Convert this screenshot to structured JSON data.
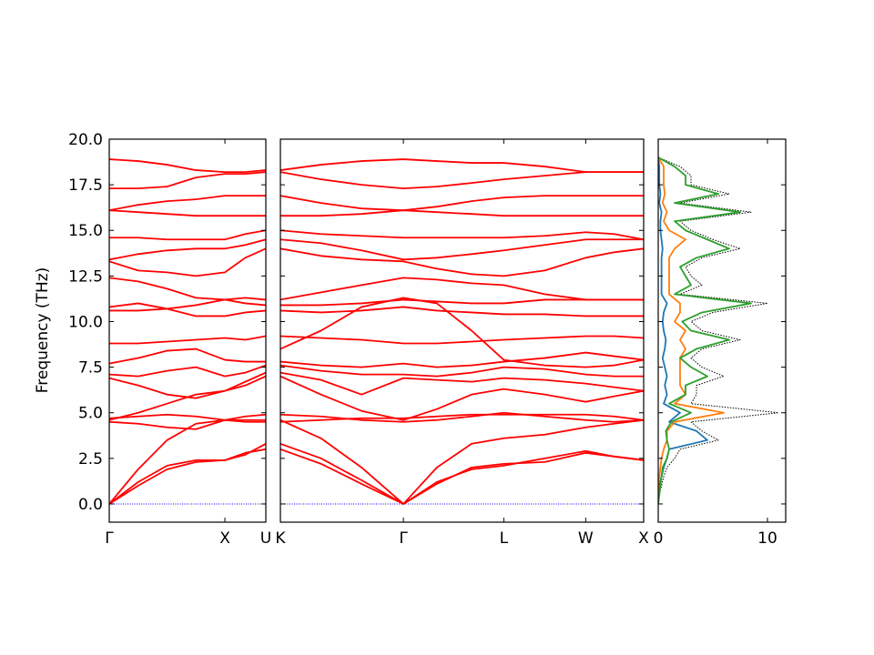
{
  "chart_data": {
    "type": "line",
    "ylabel": "Frequency (THz)",
    "ylim": [
      -1,
      20
    ],
    "yticks": [
      {
        "value": 0,
        "label": "0.0"
      },
      2.5,
      {
        "value": 5,
        "label": "5.0"
      },
      7.5,
      {
        "value": 10,
        "label": "10.0"
      },
      12.5,
      {
        "value": 15,
        "label": "15.0"
      },
      17.5,
      {
        "value": 20,
        "label": "20.0"
      }
    ],
    "hline": 0,
    "hline_color": "#0000ff",
    "panels": [
      {
        "type": "line",
        "color": "#ff0000",
        "xlim": [
          0,
          1.354
        ],
        "xticks": [
          {
            "value": 0,
            "label": "Γ"
          },
          {
            "value": 1.0,
            "label": "X"
          },
          {
            "value": 1.354,
            "label": "U"
          }
        ],
        "x": [
          0,
          0.25,
          0.5,
          0.75,
          1.0,
          1.177,
          1.354
        ],
        "series": [
          {
            "values": [
              0,
              1.0,
              1.9,
              2.3,
              2.4,
              2.7,
              3.3
            ]
          },
          {
            "values": [
              0,
              1.2,
              2.1,
              2.4,
              2.4,
              2.8,
              3.0
            ]
          },
          {
            "values": [
              0,
              1.9,
              3.5,
              4.4,
              4.6,
              4.6,
              4.6
            ]
          },
          {
            "values": [
              4.5,
              4.4,
              4.2,
              4.1,
              4.6,
              4.8,
              4.9
            ]
          },
          {
            "values": [
              4.6,
              5.0,
              5.5,
              6.0,
              6.2,
              6.5,
              7.0
            ]
          },
          {
            "values": [
              4.7,
              4.8,
              4.9,
              4.8,
              4.6,
              4.5,
              4.5
            ]
          },
          {
            "values": [
              6.9,
              6.5,
              6.0,
              5.8,
              6.2,
              6.7,
              7.2
            ]
          },
          {
            "values": [
              7.1,
              7.0,
              7.3,
              7.5,
              7.0,
              7.2,
              7.6
            ]
          },
          {
            "values": [
              7.7,
              8.0,
              8.4,
              8.5,
              7.9,
              7.8,
              7.8
            ]
          },
          {
            "values": [
              8.8,
              8.8,
              8.9,
              9.0,
              9.1,
              9.0,
              9.2
            ]
          },
          {
            "values": [
              10.6,
              10.6,
              10.7,
              10.9,
              11.2,
              11.0,
              10.9
            ]
          },
          {
            "values": [
              10.8,
              11.0,
              10.7,
              10.3,
              10.3,
              10.5,
              10.6
            ]
          },
          {
            "values": [
              12.4,
              12.2,
              11.8,
              11.3,
              11.2,
              11.3,
              11.2
            ]
          },
          {
            "values": [
              13.3,
              12.8,
              12.7,
              12.5,
              12.7,
              13.5,
              14.0
            ]
          },
          {
            "values": [
              13.4,
              13.7,
              13.9,
              14.0,
              14.0,
              14.2,
              14.5
            ]
          },
          {
            "values": [
              14.6,
              14.6,
              14.5,
              14.5,
              14.5,
              14.8,
              15.0
            ]
          },
          {
            "values": [
              16.1,
              16.4,
              16.6,
              16.7,
              16.9,
              16.9,
              16.9
            ]
          },
          {
            "values": [
              17.3,
              17.3,
              17.4,
              17.9,
              18.1,
              18.1,
              18.2
            ]
          },
          {
            "values": [
              18.9,
              18.8,
              18.6,
              18.3,
              18.2,
              18.2,
              18.3
            ]
          },
          {
            "values": [
              16.1,
              16.0,
              15.9,
              15.8,
              15.8,
              15.8,
              15.8
            ]
          }
        ]
      },
      {
        "type": "line",
        "color": "#ff0000",
        "xlim": [
          0,
          3.134
        ],
        "xticks": [
          {
            "value": 0,
            "label": "K"
          },
          {
            "value": 1.061,
            "label": "Γ"
          },
          {
            "value": 1.927,
            "label": "L"
          },
          {
            "value": 2.634,
            "label": "W"
          },
          {
            "value": 3.134,
            "label": "X"
          }
        ],
        "x": [
          0,
          0.35,
          0.7,
          1.061,
          1.35,
          1.65,
          1.927,
          2.28,
          2.634,
          2.88,
          3.134
        ],
        "series": [
          {
            "values": [
              3.3,
              2.5,
              1.3,
              0,
              1.2,
              1.9,
              2.1,
              2.5,
              2.9,
              2.6,
              2.4
            ]
          },
          {
            "values": [
              3.0,
              2.2,
              1.1,
              0,
              1.1,
              2.0,
              2.2,
              2.3,
              2.8,
              2.6,
              2.4
            ]
          },
          {
            "values": [
              4.6,
              3.6,
              2.0,
              0,
              2.0,
              3.3,
              3.6,
              3.8,
              4.2,
              4.4,
              4.6
            ]
          },
          {
            "values": [
              4.9,
              4.8,
              4.6,
              4.5,
              4.6,
              4.8,
              5.0,
              4.8,
              4.6,
              4.5,
              4.6
            ]
          },
          {
            "values": [
              7.0,
              6.0,
              5.1,
              4.6,
              5.2,
              6.0,
              6.3,
              6.0,
              5.6,
              5.9,
              6.2
            ]
          },
          {
            "values": [
              4.5,
              4.6,
              4.7,
              4.7,
              4.8,
              4.9,
              4.9,
              4.9,
              4.9,
              4.8,
              4.6
            ]
          },
          {
            "values": [
              7.2,
              6.8,
              6.0,
              6.9,
              6.8,
              6.7,
              6.9,
              6.8,
              6.6,
              6.4,
              6.2
            ]
          },
          {
            "values": [
              7.6,
              7.3,
              7.1,
              7.1,
              7.0,
              7.2,
              7.5,
              7.4,
              7.1,
              7.0,
              7.0
            ]
          },
          {
            "values": [
              7.8,
              7.6,
              7.5,
              7.7,
              7.5,
              7.6,
              7.8,
              8.0,
              8.3,
              8.1,
              7.9
            ]
          },
          {
            "values": [
              9.2,
              9.1,
              9.0,
              8.8,
              8.8,
              8.9,
              9.0,
              9.1,
              9.2,
              9.2,
              9.1
            ]
          },
          {
            "values": [
              10.9,
              10.9,
              11.0,
              11.2,
              11.1,
              11.0,
              11.0,
              11.2,
              11.2,
              11.2,
              11.2
            ]
          },
          {
            "values": [
              10.6,
              10.5,
              10.6,
              10.8,
              10.6,
              10.5,
              10.4,
              10.4,
              10.3,
              10.3,
              10.3
            ]
          },
          {
            "values": [
              11.2,
              11.6,
              12.0,
              12.4,
              12.3,
              12.1,
              12.0,
              11.5,
              11.2,
              11.2,
              11.2
            ]
          },
          {
            "values": [
              14.0,
              13.6,
              13.4,
              13.3,
              12.9,
              12.6,
              12.5,
              12.8,
              13.5,
              13.8,
              14.0
            ]
          },
          {
            "values": [
              14.5,
              14.3,
              13.9,
              13.4,
              13.5,
              13.7,
              13.9,
              14.2,
              14.5,
              14.5,
              14.5
            ]
          },
          {
            "values": [
              15.0,
              14.8,
              14.7,
              14.6,
              14.6,
              14.6,
              14.6,
              14.7,
              14.9,
              14.8,
              14.5
            ]
          },
          {
            "values": [
              16.9,
              16.5,
              16.2,
              16.1,
              16.3,
              16.6,
              16.8,
              16.9,
              16.9,
              16.9,
              16.9
            ]
          },
          {
            "values": [
              18.2,
              17.8,
              17.5,
              17.3,
              17.4,
              17.6,
              17.8,
              18.0,
              18.2,
              18.2,
              18.2
            ]
          },
          {
            "values": [
              18.3,
              18.6,
              18.8,
              18.9,
              18.8,
              18.7,
              18.7,
              18.5,
              18.2,
              18.2,
              18.2
            ]
          },
          {
            "values": [
              15.8,
              15.8,
              15.9,
              16.1,
              16.0,
              15.9,
              15.8,
              15.8,
              15.8,
              15.8,
              15.8
            ]
          },
          {
            "values": [
              8.5,
              9.5,
              10.8,
              11.3,
              11.0,
              9.5,
              7.9,
              7.6,
              7.5,
              7.6,
              7.9
            ]
          }
        ]
      },
      {
        "type": "line",
        "orientation": "horizontal",
        "xlim": [
          0,
          11.67
        ],
        "xticks": [
          0,
          10
        ],
        "y": [
          0,
          0.5,
          1,
          1.5,
          2,
          2.5,
          3,
          3.5,
          4,
          4.5,
          5,
          5.5,
          6,
          6.5,
          7,
          7.5,
          8,
          8.5,
          9,
          9.5,
          10,
          10.5,
          11,
          11.5,
          12,
          12.5,
          13,
          13.5,
          14,
          14.5,
          15,
          15.5,
          16,
          16.5,
          17,
          17.5,
          18,
          18.5,
          19
        ],
        "series": [
          {
            "color": "#000000",
            "dash": true,
            "values": [
              0,
              0.1,
              0.3,
              0.5,
              0.8,
              1.5,
              2,
              5.5,
              4,
              3,
              11,
              3,
              3.5,
              3.5,
              6,
              4,
              3,
              4,
              7.5,
              4,
              3,
              5,
              10,
              2,
              4,
              3,
              2.5,
              4,
              7.5,
              5,
              3,
              2,
              8.5,
              2,
              6.5,
              3,
              3,
              2,
              0
            ]
          },
          {
            "color": "#1f77b4",
            "values": [
              0,
              0,
              0.1,
              0.3,
              0.5,
              0.8,
              1,
              4.5,
              3.5,
              1,
              2,
              0.5,
              0.8,
              0.6,
              0.8,
              0.6,
              0.4,
              0.6,
              0.7,
              0.5,
              0.4,
              0.5,
              0.8,
              0.3,
              0.3,
              0.3,
              0.3,
              0.3,
              0.4,
              0.3,
              0.2,
              0.2,
              0.3,
              0.1,
              0.2,
              0.1,
              0.1,
              0.1,
              0
            ]
          },
          {
            "color": "#ff7f0e",
            "values": [
              0,
              0,
              0,
              0.1,
              0.2,
              0.3,
              0.5,
              0.8,
              0.8,
              1.5,
              6,
              1.5,
              2.5,
              2,
              2,
              2,
              2,
              2.5,
              2,
              2.5,
              1.5,
              2,
              2,
              1,
              1,
              1,
              1,
              1,
              1.5,
              2.5,
              1,
              0.5,
              0.8,
              0.4,
              0.6,
              0.5,
              0.5,
              0.5,
              0
            ]
          },
          {
            "color": "#2ca02c",
            "values": [
              0,
              0.1,
              0.2,
              0.3,
              0.4,
              0.8,
              1,
              0.8,
              0.7,
              1.2,
              3,
              1,
              2.5,
              2.5,
              4.5,
              3,
              2,
              3.5,
              6.5,
              3,
              2.2,
              4,
              8.5,
              1.5,
              3,
              2.5,
              2,
              3.5,
              6.5,
              4.5,
              2.5,
              1.5,
              7.5,
              1.5,
              5.5,
              2.5,
              2.5,
              1.5,
              0
            ]
          }
        ]
      }
    ]
  }
}
